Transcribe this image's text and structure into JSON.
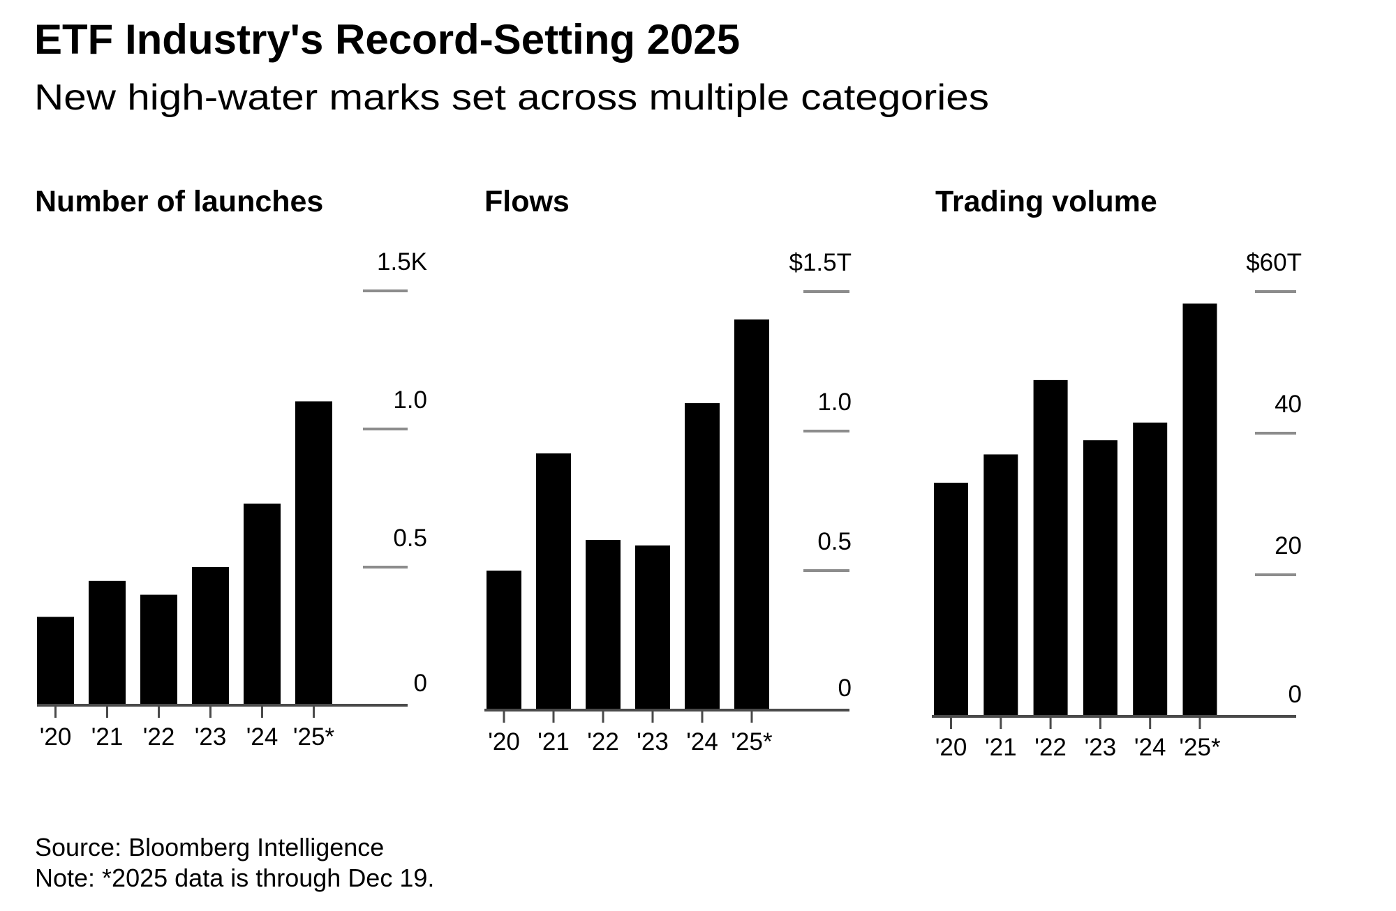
{
  "header": {
    "title": "ETF Industry's Record-Setting 2025",
    "subtitle": "New high-water marks set across multiple categories"
  },
  "colors": {
    "bar": "#000000",
    "gridline": "#8c8c8c",
    "axis": "#4a4a4a",
    "text": "#000000",
    "background": "#ffffff"
  },
  "chart_data": [
    {
      "type": "bar",
      "title": "Number of launches",
      "xlabel": "",
      "ylabel": "",
      "unit": "thousands",
      "categories": [
        "'20",
        "'21",
        "'22",
        "'23",
        "'24",
        "'25*"
      ],
      "values": [
        0.32,
        0.45,
        0.4,
        0.5,
        0.73,
        1.1
      ],
      "ylim": [
        0,
        1.5
      ],
      "yticks": [
        0,
        0.5,
        1.0,
        1.5
      ],
      "ytick_labels": [
        "0",
        "0.5",
        "1.0",
        "1.5K"
      ],
      "axis_side": "right",
      "grid": true,
      "legend": "none"
    },
    {
      "type": "bar",
      "title": "Flows",
      "xlabel": "",
      "ylabel": "",
      "unit": "USD trillions",
      "categories": [
        "'20",
        "'21",
        "'22",
        "'23",
        "'24",
        "'25*"
      ],
      "values": [
        0.5,
        0.92,
        0.61,
        0.59,
        1.1,
        1.4
      ],
      "ylim": [
        0,
        1.5
      ],
      "yticks": [
        0,
        0.5,
        1.0,
        1.5
      ],
      "ytick_labels": [
        "0",
        "0.5",
        "1.0",
        "$1.5T"
      ],
      "axis_side": "right",
      "grid": true,
      "legend": "none"
    },
    {
      "type": "bar",
      "title": "Trading volume",
      "xlabel": "",
      "ylabel": "",
      "unit": "USD trillions",
      "categories": [
        "'20",
        "'21",
        "'22",
        "'23",
        "'24",
        "'25*"
      ],
      "values": [
        33,
        37,
        47.5,
        39,
        41.5,
        58.3
      ],
      "ylim": [
        0,
        60
      ],
      "yticks": [
        0,
        20,
        40,
        60
      ],
      "ytick_labels": [
        "0",
        "20",
        "40",
        "$60T"
      ],
      "axis_side": "right",
      "grid": true,
      "legend": "none"
    }
  ],
  "footer": {
    "source": "Source: Bloomberg Intelligence",
    "note": "Note: *2025 data is through Dec 19."
  }
}
